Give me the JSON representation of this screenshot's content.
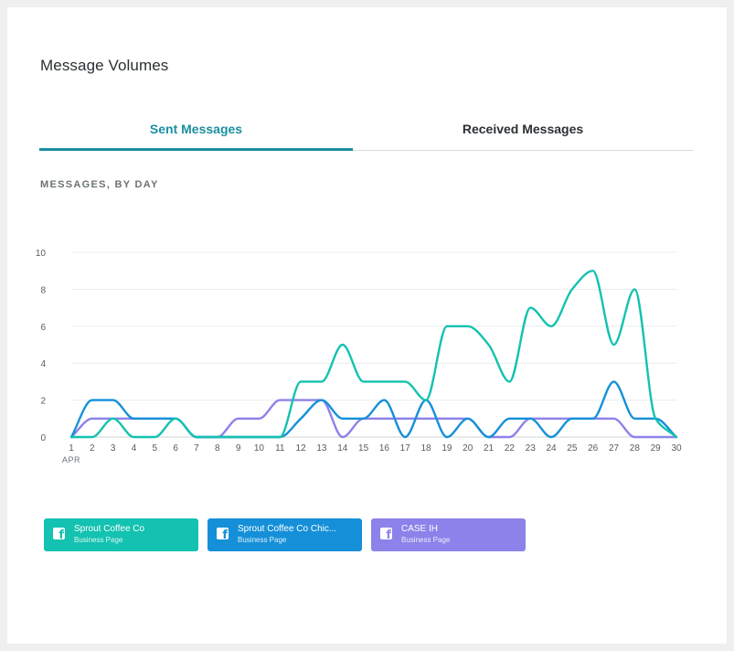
{
  "header": {
    "title": "Message Volumes"
  },
  "tabs": [
    {
      "label": "Sent Messages",
      "active": true
    },
    {
      "label": "Received Messages",
      "active": false
    }
  ],
  "subtitle": "MESSAGES, BY DAY",
  "legend": [
    {
      "name": "Sprout Coffee Co",
      "type": "Business Page",
      "color": "#13c2b0",
      "icon": "facebook-icon"
    },
    {
      "name": "Sprout Coffee Co Chic...",
      "type": "Business Page",
      "color": "#1590d8",
      "icon": "facebook-icon"
    },
    {
      "name": "CASE IH",
      "type": "Business Page",
      "color": "#8c82ea",
      "icon": "facebook-icon"
    }
  ],
  "chart_data": {
    "type": "line",
    "x": [
      1,
      2,
      3,
      4,
      5,
      6,
      7,
      8,
      9,
      10,
      11,
      12,
      13,
      14,
      15,
      16,
      17,
      18,
      19,
      20,
      21,
      22,
      23,
      24,
      25,
      26,
      27,
      28,
      29,
      30
    ],
    "x_tick_labels": [
      "1",
      "2",
      "3",
      "4",
      "5",
      "6",
      "7",
      "8",
      "9",
      "10",
      "11",
      "12",
      "13",
      "14",
      "15",
      "16",
      "17",
      "18",
      "19",
      "20",
      "21",
      "22",
      "23",
      "24",
      "25",
      "26",
      "27",
      "28",
      "29",
      "30"
    ],
    "x_sublabel": "APR",
    "ylim": [
      0,
      10
    ],
    "y_ticks": [
      0,
      2,
      4,
      6,
      8,
      10
    ],
    "grid": true,
    "series": [
      {
        "name": "Sprout Coffee Co",
        "color": "#13c2b0",
        "values": [
          0,
          0,
          1,
          0,
          0,
          1,
          0,
          0,
          0,
          0,
          0,
          3,
          3,
          5,
          3,
          3,
          3,
          2,
          6,
          6,
          5,
          3,
          7,
          6,
          8,
          9,
          5,
          8,
          1,
          0
        ]
      },
      {
        "name": "Sprout Coffee Co Chic...",
        "color": "#1590d8",
        "values": [
          0,
          2,
          2,
          1,
          1,
          1,
          0,
          0,
          0,
          0,
          0,
          1,
          2,
          1,
          1,
          2,
          0,
          2,
          0,
          1,
          0,
          1,
          1,
          0,
          1,
          1,
          3,
          1,
          1,
          0
        ]
      },
      {
        "name": "CASE IH",
        "color": "#8c82ea",
        "values": [
          0,
          1,
          1,
          1,
          1,
          1,
          0,
          0,
          1,
          1,
          2,
          2,
          2,
          0,
          1,
          1,
          1,
          1,
          1,
          1,
          0,
          0,
          1,
          1,
          1,
          1,
          1,
          0,
          0,
          0
        ]
      }
    ]
  }
}
